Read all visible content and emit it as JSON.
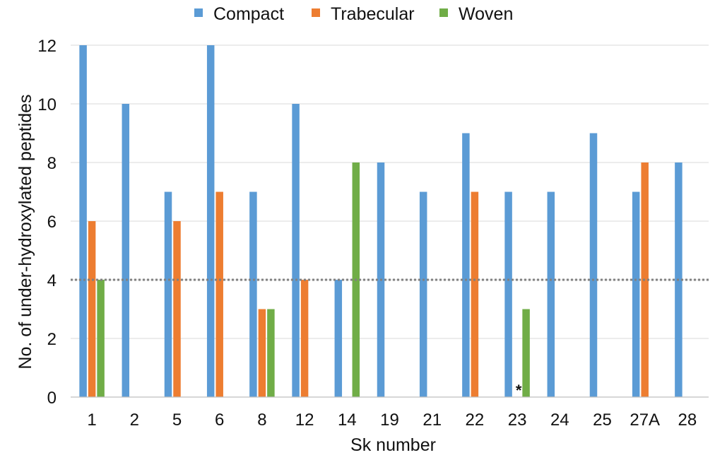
{
  "chart_data": {
    "type": "bar",
    "xlabel": "Sk number",
    "ylabel": "No. of under-hydroxylated peptides",
    "ylim": [
      0,
      12
    ],
    "yticks": [
      0,
      2,
      4,
      6,
      8,
      10,
      12
    ],
    "grid": true,
    "legend_position": "top",
    "categories": [
      "1",
      "2",
      "5",
      "6",
      "8",
      "12",
      "14",
      "19",
      "21",
      "22",
      "23",
      "24",
      "25",
      "27A",
      "28"
    ],
    "series": [
      {
        "name": "Compact",
        "color": "#5B9BD5",
        "values": [
          12,
          10,
          7,
          12,
          7,
          10,
          4,
          8,
          7,
          9,
          7,
          7,
          9,
          7,
          8
        ]
      },
      {
        "name": "Trabecular",
        "color": "#ED7D31",
        "values": [
          6,
          null,
          6,
          7,
          3,
          4,
          null,
          null,
          null,
          7,
          null,
          null,
          null,
          8,
          null
        ]
      },
      {
        "name": "Woven",
        "color": "#70AD47",
        "values": [
          4,
          null,
          null,
          null,
          3,
          null,
          8,
          null,
          null,
          null,
          3,
          null,
          null,
          null,
          null
        ]
      }
    ],
    "reference_line": {
      "value": 4,
      "style": "dotted",
      "color": "#808080"
    },
    "annotations": [
      {
        "text": "*",
        "category": "23",
        "y": 0
      }
    ]
  }
}
